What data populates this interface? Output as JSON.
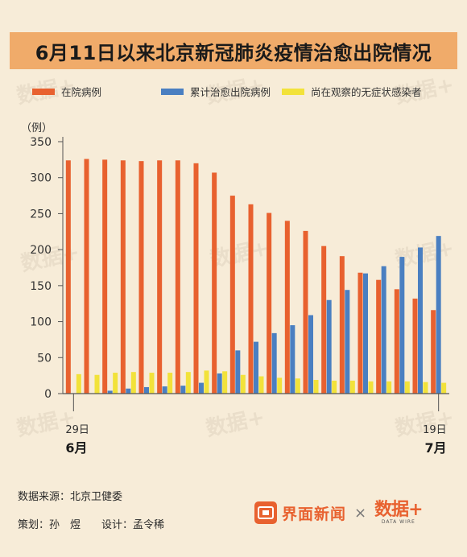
{
  "title": "6月11日以来北京新冠肺炎疫情治愈出院情况",
  "legend": [
    {
      "label": "在院病例",
      "color": "#e8612f"
    },
    {
      "label": "累计治愈出院病例",
      "color": "#4a7fc1"
    },
    {
      "label": "尚在观察的无症状感染者",
      "color": "#f2e23a"
    }
  ],
  "chart_data": {
    "type": "bar",
    "categories": [
      "6/29",
      "6/30",
      "7/1",
      "7/2",
      "7/3",
      "7/4",
      "7/5",
      "7/6",
      "7/7",
      "7/8",
      "7/9",
      "7/10",
      "7/11",
      "7/12",
      "7/13",
      "7/14",
      "7/15",
      "7/16",
      "7/17",
      "7/18",
      "7/19"
    ],
    "series": [
      {
        "name": "在院病例",
        "color": "#e8612f",
        "values": [
          324,
          326,
          325,
          324,
          323,
          324,
          324,
          320,
          307,
          275,
          263,
          251,
          240,
          226,
          205,
          191,
          168,
          158,
          145,
          132,
          116
        ]
      },
      {
        "name": "累计治愈出院病例",
        "color": "#4a7fc1",
        "values": [
          0,
          0,
          4,
          7,
          9,
          10,
          11,
          15,
          28,
          60,
          72,
          84,
          95,
          109,
          130,
          144,
          167,
          177,
          190,
          203,
          219
        ]
      },
      {
        "name": "尚在观察的无症状感染者",
        "color": "#f2e23a",
        "values": [
          27,
          26,
          29,
          30,
          29,
          29,
          30,
          32,
          31,
          26,
          24,
          22,
          21,
          19,
          18,
          18,
          17,
          17,
          17,
          16,
          15
        ]
      }
    ],
    "ylabel": "（例）",
    "ylim": [
      0,
      350
    ],
    "yticks": [
      0,
      50,
      100,
      150,
      200,
      250,
      300,
      350
    ],
    "grid": false,
    "legend_position": "top",
    "x_start_label": {
      "day": "29日",
      "month": "6月"
    },
    "x_end_label": {
      "day": "19日",
      "month": "7月"
    }
  },
  "footer": {
    "source": "数据来源：北京卫健委",
    "credits": "策划：孙　煜　　设计：孟令稀",
    "brand_name": "界面新闻",
    "separator": "×",
    "brand2_name": "数据+",
    "brand2_sub": "DATA WIRE"
  }
}
